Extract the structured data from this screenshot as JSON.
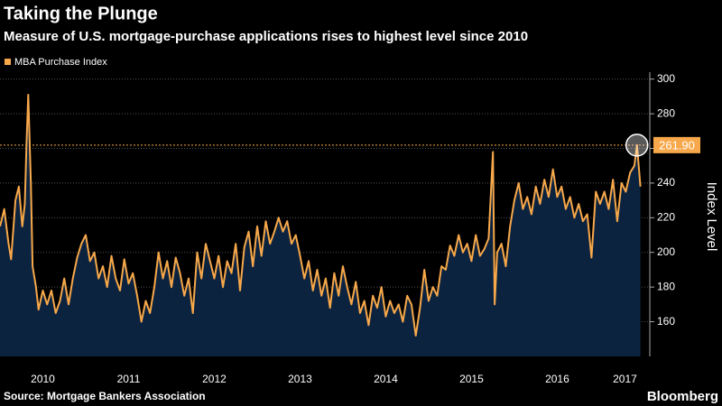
{
  "chart_data": {
    "type": "area-line",
    "title": "Taking the Plunge",
    "subtitle": "Measure of U.S. mortgage-purchase applications rises to highest level since 2010",
    "source": "Source: Mortgage Bankers Association",
    "brand": "Bloomberg",
    "y_label": "Index Level",
    "xlim": [
      2010,
      2017.58
    ],
    "xticks": [
      {
        "value": 2010.5,
        "label": "2010"
      },
      {
        "value": 2011.5,
        "label": "2011"
      },
      {
        "value": 2012.5,
        "label": "2012"
      },
      {
        "value": 2013.5,
        "label": "2013"
      },
      {
        "value": 2014.5,
        "label": "2014"
      },
      {
        "value": 2015.5,
        "label": "2015"
      },
      {
        "value": 2016.5,
        "label": "2016"
      },
      {
        "value": 2017.29,
        "label": "2017"
      }
    ],
    "ylim": [
      140,
      304
    ],
    "yticks": [
      160,
      180,
      200,
      220,
      240,
      260,
      280,
      300
    ],
    "grid": true,
    "annotation": {
      "value": 261.9,
      "label": "261.90"
    },
    "series": [
      {
        "name": "MBA Purchase Index",
        "color": "#f7a84a",
        "fill": "#0c2340",
        "x": [
          2010.0,
          2010.05,
          2010.1,
          2010.13,
          2010.18,
          2010.22,
          2010.26,
          2010.29,
          2010.31,
          2010.33,
          2010.36,
          2010.38,
          2010.42,
          2010.45,
          2010.5,
          2010.55,
          2010.6,
          2010.65,
          2010.7,
          2010.75,
          2010.8,
          2010.85,
          2010.9,
          2010.95,
          2011.0,
          2011.05,
          2011.1,
          2011.15,
          2011.2,
          2011.25,
          2011.3,
          2011.35,
          2011.4,
          2011.45,
          2011.5,
          2011.55,
          2011.6,
          2011.65,
          2011.7,
          2011.75,
          2011.8,
          2011.85,
          2011.9,
          2011.95,
          2012.0,
          2012.05,
          2012.1,
          2012.15,
          2012.2,
          2012.25,
          2012.3,
          2012.35,
          2012.4,
          2012.45,
          2012.5,
          2012.55,
          2012.6,
          2012.65,
          2012.7,
          2012.75,
          2012.8,
          2012.85,
          2012.9,
          2012.95,
          2013.0,
          2013.05,
          2013.1,
          2013.15,
          2013.2,
          2013.25,
          2013.3,
          2013.35,
          2013.4,
          2013.45,
          2013.5,
          2013.55,
          2013.6,
          2013.65,
          2013.7,
          2013.75,
          2013.8,
          2013.85,
          2013.9,
          2013.95,
          2014.0,
          2014.05,
          2014.1,
          2014.15,
          2014.2,
          2014.25,
          2014.3,
          2014.35,
          2014.4,
          2014.45,
          2014.5,
          2014.55,
          2014.6,
          2014.65,
          2014.7,
          2014.75,
          2014.8,
          2014.85,
          2014.9,
          2014.95,
          2015.0,
          2015.05,
          2015.1,
          2015.15,
          2015.2,
          2015.25,
          2015.3,
          2015.35,
          2015.4,
          2015.45,
          2015.5,
          2015.55,
          2015.6,
          2015.65,
          2015.7,
          2015.75,
          2015.77,
          2015.8,
          2015.85,
          2015.9,
          2015.95,
          2016.0,
          2016.05,
          2016.1,
          2016.15,
          2016.2,
          2016.25,
          2016.3,
          2016.35,
          2016.4,
          2016.45,
          2016.5,
          2016.55,
          2016.6,
          2016.65,
          2016.7,
          2016.75,
          2016.8,
          2016.85,
          2016.9,
          2016.95,
          2017.0,
          2017.05,
          2017.1,
          2017.15,
          2017.2,
          2017.25,
          2017.3,
          2017.35,
          2017.4,
          2017.43,
          2017.47
        ],
        "values": [
          215,
          225,
          205,
          196,
          230,
          238,
          215,
          228,
          263,
          291,
          240,
          192,
          180,
          167,
          178,
          170,
          178,
          165,
          172,
          185,
          170,
          185,
          197,
          205,
          210,
          195,
          200,
          185,
          192,
          180,
          198,
          185,
          178,
          196,
          182,
          188,
          175,
          160,
          172,
          165,
          180,
          200,
          185,
          195,
          180,
          197,
          188,
          175,
          185,
          165,
          200,
          185,
          205,
          195,
          185,
          198,
          180,
          195,
          188,
          205,
          178,
          203,
          212,
          192,
          215,
          198,
          218,
          205,
          212,
          220,
          212,
          218,
          205,
          210,
          198,
          185,
          195,
          178,
          190,
          175,
          185,
          168,
          188,
          175,
          192,
          180,
          170,
          183,
          165,
          172,
          158,
          175,
          168,
          180,
          163,
          172,
          165,
          170,
          160,
          175,
          170,
          152,
          168,
          190,
          172,
          180,
          175,
          192,
          190,
          204,
          198,
          210,
          200,
          205,
          195,
          210,
          198,
          202,
          208,
          258,
          170,
          200,
          205,
          192,
          215,
          230,
          240,
          225,
          232,
          222,
          238,
          228,
          242,
          232,
          248,
          232,
          238,
          225,
          232,
          220,
          228,
          218,
          222,
          197,
          235,
          228,
          235,
          225,
          242,
          218,
          240,
          235,
          246,
          250,
          261.9,
          238
        ]
      }
    ]
  }
}
